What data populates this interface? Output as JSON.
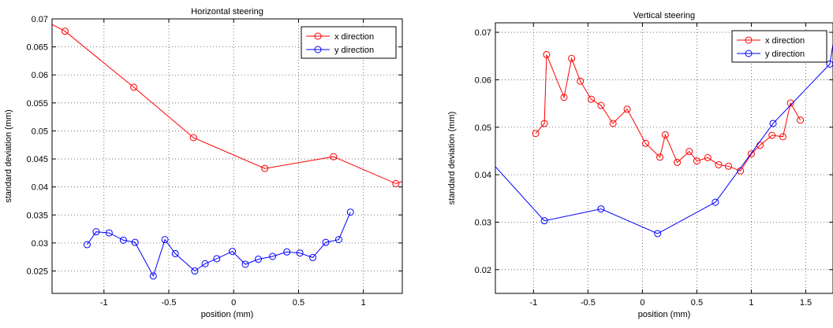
{
  "chart_data": [
    {
      "type": "line",
      "title": "Horizontal steering",
      "xlabel": "position (mm)",
      "ylabel": "standard deviation (mm)",
      "xlim": [
        -1.4,
        1.3
      ],
      "ylim": [
        0.021,
        0.07
      ],
      "xticks": [
        -1,
        -0.5,
        0,
        0.5,
        1
      ],
      "xtick_labels": [
        "-1",
        "-0.5",
        "0",
        "0.5",
        "1"
      ],
      "yticks": [
        0.025,
        0.03,
        0.035,
        0.04,
        0.045,
        0.05,
        0.055,
        0.06,
        0.065,
        0.07
      ],
      "ytick_labels": [
        "0.025",
        "0.03",
        "0.035",
        "0.04",
        "0.045",
        "0.05",
        "0.055",
        "0.06",
        "0.065",
        "0.07"
      ],
      "grid": true,
      "legend_position": "top-right",
      "series": [
        {
          "name": "x direction",
          "color": "#ff0000",
          "extend_start": [
            -1.4,
            0.069
          ],
          "extend_end": [
            1.3,
            0.041
          ],
          "points": [
            [
              -1.3,
              0.0678
            ],
            [
              -0.77,
              0.0578
            ],
            [
              -0.31,
              0.0488
            ],
            [
              0.24,
              0.0433
            ],
            [
              0.77,
              0.0454
            ],
            [
              1.25,
              0.0406
            ]
          ]
        },
        {
          "name": "y direction",
          "color": "#0000ff",
          "points": [
            [
              -1.13,
              0.0297
            ],
            [
              -1.06,
              0.032
            ],
            [
              -0.96,
              0.0318
            ],
            [
              -0.85,
              0.0305
            ],
            [
              -0.76,
              0.0301
            ],
            [
              -0.62,
              0.0241
            ],
            [
              -0.53,
              0.0306
            ],
            [
              -0.45,
              0.0281
            ],
            [
              -0.3,
              0.025
            ],
            [
              -0.22,
              0.0263
            ],
            [
              -0.13,
              0.0272
            ],
            [
              -0.01,
              0.0285
            ],
            [
              0.09,
              0.0262
            ],
            [
              0.19,
              0.0271
            ],
            [
              0.3,
              0.0276
            ],
            [
              0.41,
              0.0284
            ],
            [
              0.51,
              0.0282
            ],
            [
              0.61,
              0.0274
            ],
            [
              0.71,
              0.0301
            ],
            [
              0.81,
              0.0306
            ],
            [
              0.9,
              0.0355
            ]
          ]
        }
      ]
    },
    {
      "type": "line",
      "title": "Vertical steering",
      "xlabel": "position (mm)",
      "ylabel": "standard deviation (mm)",
      "xlim": [
        -1.35,
        1.75
      ],
      "ylim": [
        0.015,
        0.072
      ],
      "xticks": [
        -1,
        -0.5,
        0,
        0.5,
        1,
        1.5
      ],
      "xtick_labels": [
        "-1",
        "-0.5",
        "0",
        "0.5",
        "1",
        "1.5"
      ],
      "yticks": [
        0.02,
        0.03,
        0.04,
        0.05,
        0.06,
        0.07
      ],
      "ytick_labels": [
        "0.02",
        "0.03",
        "0.04",
        "0.05",
        "0.06",
        "0.07"
      ],
      "grid": true,
      "legend_position": "top-right",
      "series": [
        {
          "name": "x direction",
          "color": "#ff0000",
          "points": [
            [
              -0.98,
              0.0487
            ],
            [
              -0.9,
              0.0508
            ],
            [
              -0.88,
              0.0653
            ],
            [
              -0.72,
              0.0563
            ],
            [
              -0.65,
              0.0645
            ],
            [
              -0.57,
              0.0597
            ],
            [
              -0.47,
              0.0559
            ],
            [
              -0.38,
              0.0546
            ],
            [
              -0.27,
              0.0508
            ],
            [
              -0.14,
              0.0538
            ],
            [
              0.03,
              0.0466
            ],
            [
              0.16,
              0.0437
            ],
            [
              0.21,
              0.0484
            ],
            [
              0.32,
              0.0426
            ],
            [
              0.43,
              0.0449
            ],
            [
              0.5,
              0.0429
            ],
            [
              0.6,
              0.0436
            ],
            [
              0.7,
              0.0421
            ],
            [
              0.79,
              0.0418
            ],
            [
              0.9,
              0.0408
            ],
            [
              1.0,
              0.0444
            ],
            [
              1.08,
              0.0462
            ],
            [
              1.19,
              0.0483
            ],
            [
              1.29,
              0.048
            ],
            [
              1.36,
              0.0551
            ],
            [
              1.45,
              0.0515
            ]
          ]
        },
        {
          "name": "y direction",
          "color": "#0000ff",
          "extend_start": [
            -1.35,
            0.0417
          ],
          "extend_end": [
            1.75,
            0.0675
          ],
          "points": [
            [
              -0.9,
              0.0303
            ],
            [
              -0.38,
              0.0328
            ],
            [
              0.14,
              0.0276
            ],
            [
              0.67,
              0.0342
            ],
            [
              1.2,
              0.0508
            ],
            [
              1.72,
              0.0633
            ]
          ]
        }
      ]
    }
  ]
}
